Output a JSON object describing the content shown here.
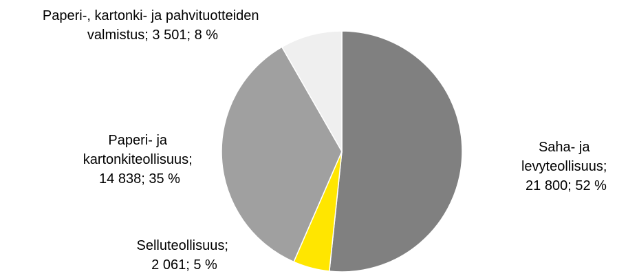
{
  "chart_data": {
    "type": "pie",
    "categories": [
      "Saha- ja levyteollisuus",
      "Selluteollisuus",
      "Paperi- ja kartonkiteollisuus",
      "Paperi-, kartonki- ja pahvituotteiden valmistus"
    ],
    "values": [
      21800,
      2061,
      14838,
      3501
    ],
    "value_labels": [
      "21 800",
      "2 061",
      "14 838",
      "3 501"
    ],
    "percentages": [
      52,
      5,
      35,
      8
    ],
    "percentage_labels": [
      "52 %",
      "5 %",
      "35 %",
      "8 %"
    ],
    "label_separator": "; ",
    "colors": [
      "#808080",
      "#ffe600",
      "#a0a0a0",
      "#efefef"
    ]
  }
}
